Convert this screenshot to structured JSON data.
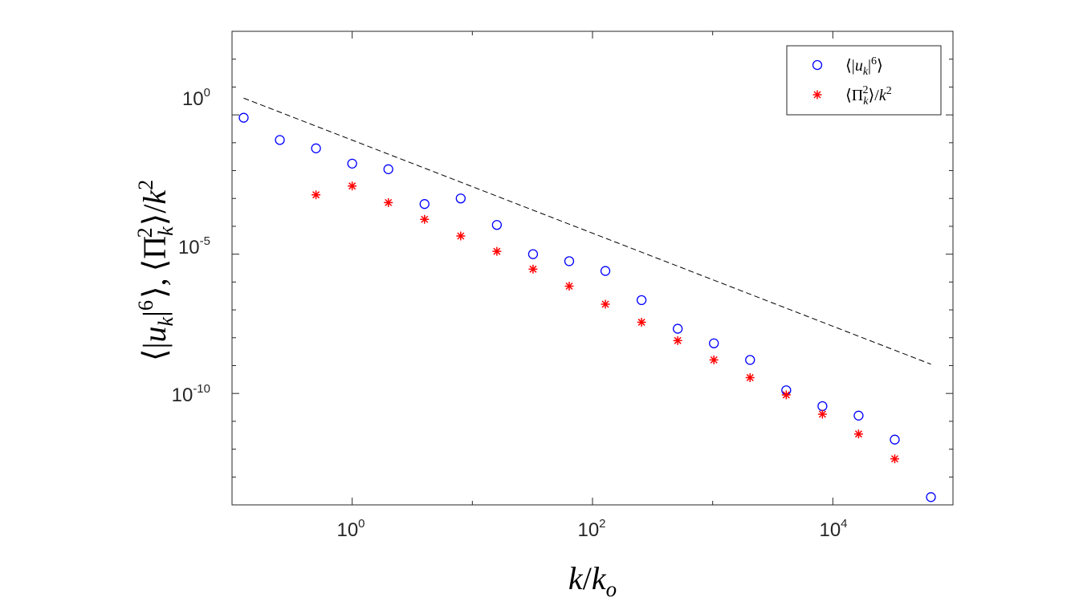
{
  "chart_data": {
    "type": "scatter",
    "x_scale": "log",
    "y_scale": "log",
    "xlim": [
      0.1,
      100000
    ],
    "ylim": [
      1e-14,
      1000.0
    ],
    "xticks": [
      {
        "value": 1,
        "base": "10",
        "exp": "0"
      },
      {
        "value": 100,
        "base": "10",
        "exp": "2"
      },
      {
        "value": 10000,
        "base": "10",
        "exp": "4"
      }
    ],
    "yticks": [
      {
        "value": 1,
        "base": "10",
        "exp": "0"
      },
      {
        "value": 1e-05,
        "base": "10",
        "exp": "-5"
      },
      {
        "value": 1e-10,
        "base": "10",
        "exp": "-10"
      }
    ],
    "xlabel": {
      "main": "k",
      "slash": "/",
      "k": "k",
      "sub": "o"
    },
    "ylabel": {
      "open1": "⟨|",
      "u": "u",
      "sub1": "k",
      "close1": "|",
      "sup1": "6",
      "end1": "⟩,",
      "open2": "⟨Π",
      "sub2": "k",
      "sup2": "2",
      "close2": "⟩/",
      "k": "k",
      "sup3": "2"
    },
    "series": [
      {
        "name": "⟨|u_k|^6⟩",
        "marker": "circle",
        "color": "#0000ff",
        "x": [
          0.125,
          0.25,
          0.5,
          1,
          2,
          4,
          8,
          16,
          32,
          64,
          128,
          256,
          512,
          1024,
          2048,
          4096,
          8192,
          16384,
          32768,
          65536
        ],
        "y": [
          0.79,
          0.126,
          0.063,
          0.0178,
          0.0112,
          0.00063,
          0.001,
          0.000112,
          1e-05,
          5.6e-06,
          2.5e-06,
          2.24e-07,
          2.1e-08,
          6.3e-09,
          1.6e-09,
          1.3e-10,
          3.5e-11,
          1.6e-11,
          2.2e-12,
          1.9e-14
        ]
      },
      {
        "name": "⟨Π_k^2⟩/k^2",
        "marker": "asterisk",
        "color": "#ff0000",
        "x": [
          0.5,
          1,
          2,
          4,
          8,
          16,
          32,
          64,
          128,
          256,
          512,
          1024,
          2048,
          4096,
          8192,
          16384,
          32768
        ],
        "y": [
          0.00135,
          0.0028,
          0.00071,
          0.000178,
          4.5e-05,
          1.26e-05,
          2.9e-06,
          7.1e-07,
          1.6e-07,
          3.6e-08,
          7.9e-09,
          1.6e-09,
          3.7e-10,
          8.9e-11,
          1.8e-11,
          3.5e-12,
          4.5e-13
        ]
      }
    ],
    "reference_line": {
      "style": "dashed",
      "color": "#000000",
      "x": [
        0.125,
        65536
      ],
      "y": [
        4.0,
        1.12e-09
      ]
    },
    "legend": {
      "position": "top-right",
      "entries": [
        {
          "open": "⟨|",
          "u": "u",
          "sub": "k",
          "close": "|",
          "sup": "6",
          "end": "⟩"
        },
        {
          "open": "⟨Π",
          "sub": "k",
          "sup": "2",
          "close": "⟩/",
          "k": "k",
          "sup2": "2"
        }
      ]
    }
  }
}
